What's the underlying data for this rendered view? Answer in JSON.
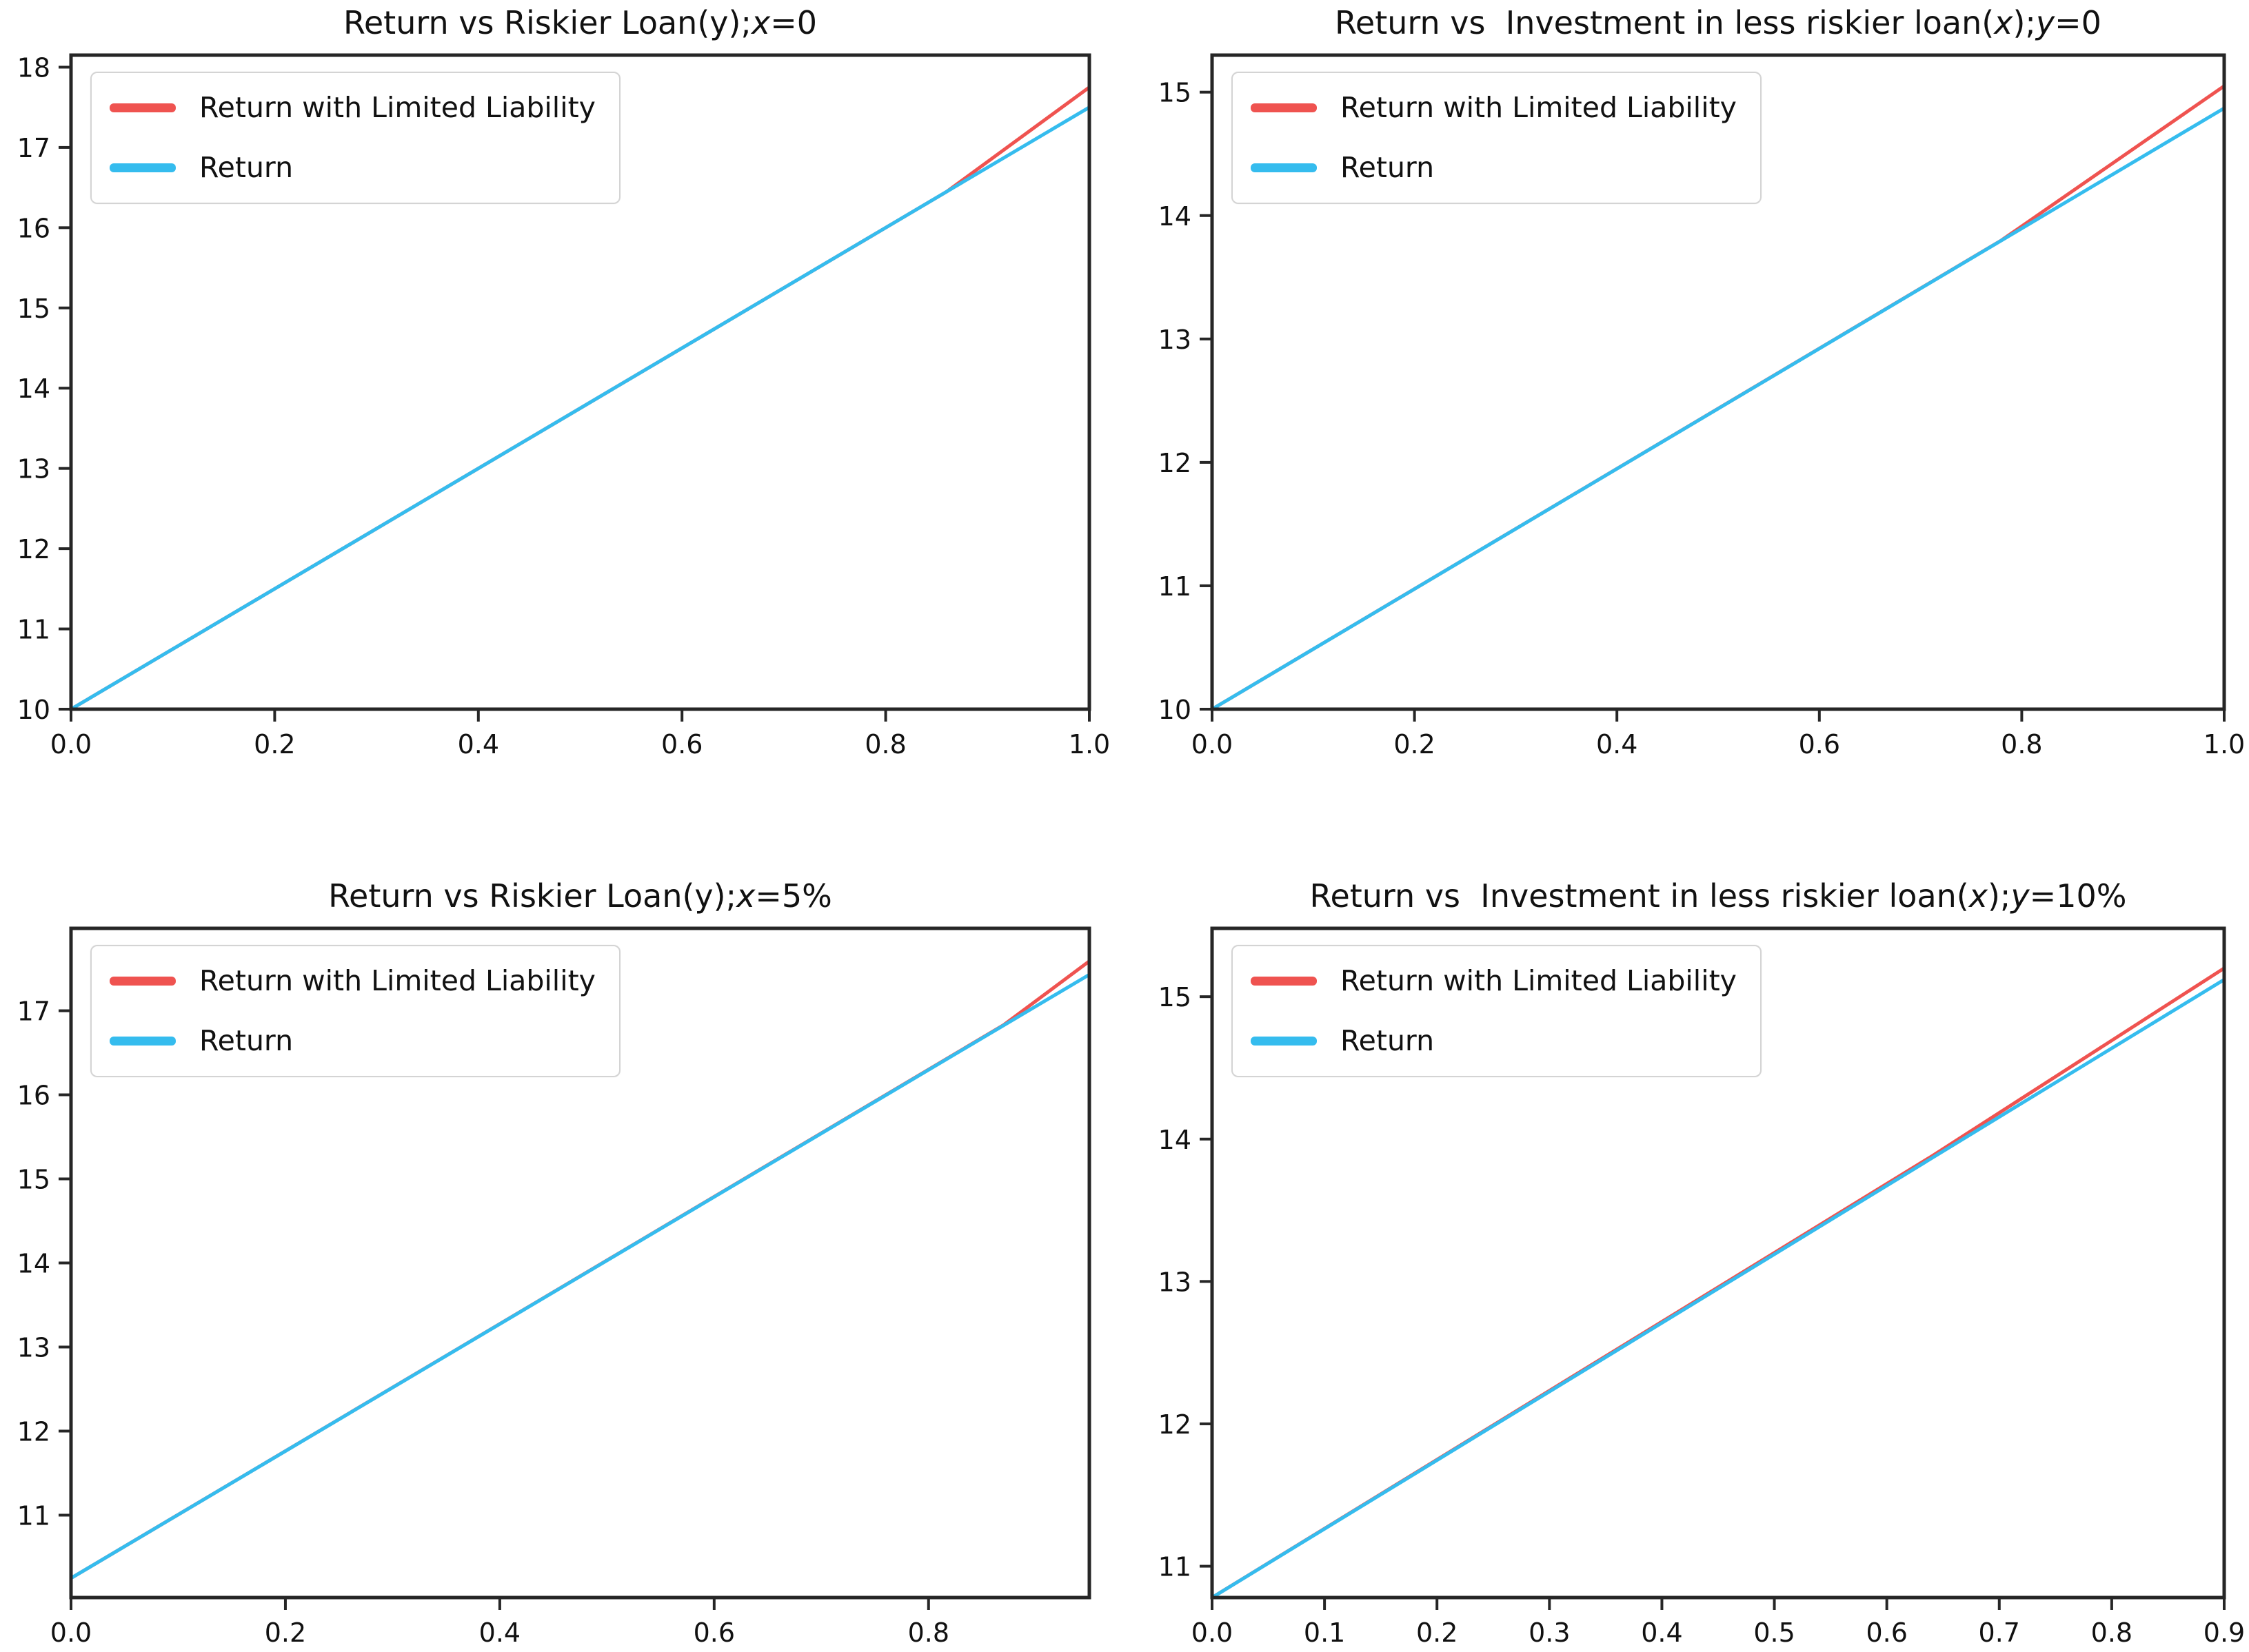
{
  "figure": {
    "background": "#ffffff",
    "text_color": "#111111",
    "axis_color": "#262626",
    "colors": {
      "limited_liability_line": "#ef5350",
      "return_line": "#35bcee"
    }
  },
  "chart_data": [
    {
      "id": "return-vs-riskier-loan-x0",
      "type": "line",
      "title": "Return vs Riskier Loan(y);x=0",
      "title_segments": [
        {
          "text": "Return vs Riskier Loan(y);",
          "italic": false
        },
        {
          "text": "x",
          "italic": true
        },
        {
          "text": "=0",
          "italic": false
        }
      ],
      "xlabel": "",
      "ylabel": "",
      "grid": false,
      "legend_position": "upper-left",
      "xlim": [
        0.0,
        1.0
      ],
      "ylim": [
        10.0,
        18.15
      ],
      "xtick_values": [
        0.0,
        0.2,
        0.4,
        0.6,
        0.8,
        1.0
      ],
      "xtick_labels": [
        "0.0",
        "0.2",
        "0.4",
        "0.6",
        "0.8",
        "1.0"
      ],
      "ytick_values": [
        10,
        11,
        12,
        13,
        14,
        15,
        16,
        17,
        18
      ],
      "ytick_labels": [
        "10",
        "11",
        "12",
        "13",
        "14",
        "15",
        "16",
        "17",
        "18"
      ],
      "series": [
        {
          "label": "Return with Limited Liability",
          "color": "#ef5350",
          "points": [
            [
              0.0,
              10.0
            ],
            [
              0.86,
              16.45
            ],
            [
              1.0,
              17.75
            ]
          ]
        },
        {
          "label": "Return",
          "color": "#35bcee",
          "points": [
            [
              0.0,
              10.0
            ],
            [
              1.0,
              17.5
            ]
          ]
        }
      ]
    },
    {
      "id": "return-vs-less-risky-loan-y0",
      "type": "line",
      "title": "Return vs  Investment in less riskier loan(x);y=0",
      "title_segments": [
        {
          "text": "Return vs  Investment in less riskier loan(",
          "italic": false
        },
        {
          "text": "x",
          "italic": true
        },
        {
          "text": ");",
          "italic": false
        },
        {
          "text": "y",
          "italic": true
        },
        {
          "text": "=0",
          "italic": false
        }
      ],
      "xlabel": "",
      "ylabel": "",
      "grid": false,
      "legend_position": "upper-left",
      "xlim": [
        0.0,
        1.0
      ],
      "ylim": [
        10.0,
        15.3
      ],
      "xtick_values": [
        0.0,
        0.2,
        0.4,
        0.6,
        0.8,
        1.0
      ],
      "xtick_labels": [
        "0.0",
        "0.2",
        "0.4",
        "0.6",
        "0.8",
        "1.0"
      ],
      "ytick_values": [
        10,
        11,
        12,
        13,
        14,
        15
      ],
      "ytick_labels": [
        "10",
        "11",
        "12",
        "13",
        "14",
        "15"
      ],
      "series": [
        {
          "label": "Return with Limited Liability",
          "color": "#ef5350",
          "points": [
            [
              0.0,
              10.0
            ],
            [
              0.78,
              13.8
            ],
            [
              1.0,
              15.05
            ]
          ]
        },
        {
          "label": "Return",
          "color": "#35bcee",
          "points": [
            [
              0.0,
              10.0
            ],
            [
              1.0,
              14.87
            ]
          ]
        }
      ]
    },
    {
      "id": "return-vs-riskier-loan-x5pct",
      "type": "line",
      "title": "Return vs Riskier Loan(y);x=5%",
      "title_segments": [
        {
          "text": "Return vs Riskier Loan(y);",
          "italic": false
        },
        {
          "text": "x",
          "italic": true
        },
        {
          "text": "=5%",
          "italic": false
        }
      ],
      "xlabel": "",
      "ylabel": "",
      "grid": false,
      "legend_position": "upper-left",
      "xlim": [
        0.0,
        0.95
      ],
      "ylim": [
        10.02,
        17.98
      ],
      "xtick_values": [
        0.0,
        0.2,
        0.4,
        0.6,
        0.8
      ],
      "xtick_labels": [
        "0.0",
        "0.2",
        "0.4",
        "0.6",
        "0.8"
      ],
      "ytick_values": [
        11,
        12,
        13,
        14,
        15,
        16,
        17
      ],
      "ytick_labels": [
        "11",
        "12",
        "13",
        "14",
        "15",
        "16",
        "17"
      ],
      "series": [
        {
          "label": "Return with Limited Liability",
          "color": "#ef5350",
          "points": [
            [
              0.0,
              10.25
            ],
            [
              0.87,
              16.83
            ],
            [
              0.95,
              17.59
            ]
          ]
        },
        {
          "label": "Return",
          "color": "#35bcee",
          "points": [
            [
              0.0,
              10.25
            ],
            [
              0.95,
              17.43
            ]
          ]
        }
      ]
    },
    {
      "id": "return-vs-less-risky-loan-y10pct",
      "type": "line",
      "title": "Return vs  Investment in less riskier loan(x);y=10%",
      "title_segments": [
        {
          "text": "Return vs  Investment in less riskier loan(",
          "italic": false
        },
        {
          "text": "x",
          "italic": true
        },
        {
          "text": ");",
          "italic": false
        },
        {
          "text": "y",
          "italic": true
        },
        {
          "text": "=10%",
          "italic": false
        }
      ],
      "xlabel": "",
      "ylabel": "",
      "grid": false,
      "legend_position": "upper-left",
      "xlim": [
        0.0,
        0.9
      ],
      "ylim": [
        10.78,
        15.48
      ],
      "xtick_values": [
        0.0,
        0.1,
        0.2,
        0.3,
        0.4,
        0.5,
        0.6,
        0.7,
        0.8,
        0.9
      ],
      "xtick_labels": [
        "0.0",
        "0.1",
        "0.2",
        "0.3",
        "0.4",
        "0.5",
        "0.6",
        "0.7",
        "0.8",
        "0.9"
      ],
      "ytick_values": [
        11,
        12,
        13,
        14,
        15
      ],
      "ytick_labels": [
        "11",
        "12",
        "13",
        "14",
        "15"
      ],
      "series": [
        {
          "label": "Return with Limited Liability",
          "color": "#ef5350",
          "points": [
            [
              0.0,
              10.78
            ],
            [
              0.64,
              13.88
            ],
            [
              0.9,
              15.2
            ]
          ]
        },
        {
          "label": "Return",
          "color": "#35bcee",
          "points": [
            [
              0.0,
              10.78
            ],
            [
              0.9,
              15.12
            ]
          ]
        }
      ]
    }
  ]
}
